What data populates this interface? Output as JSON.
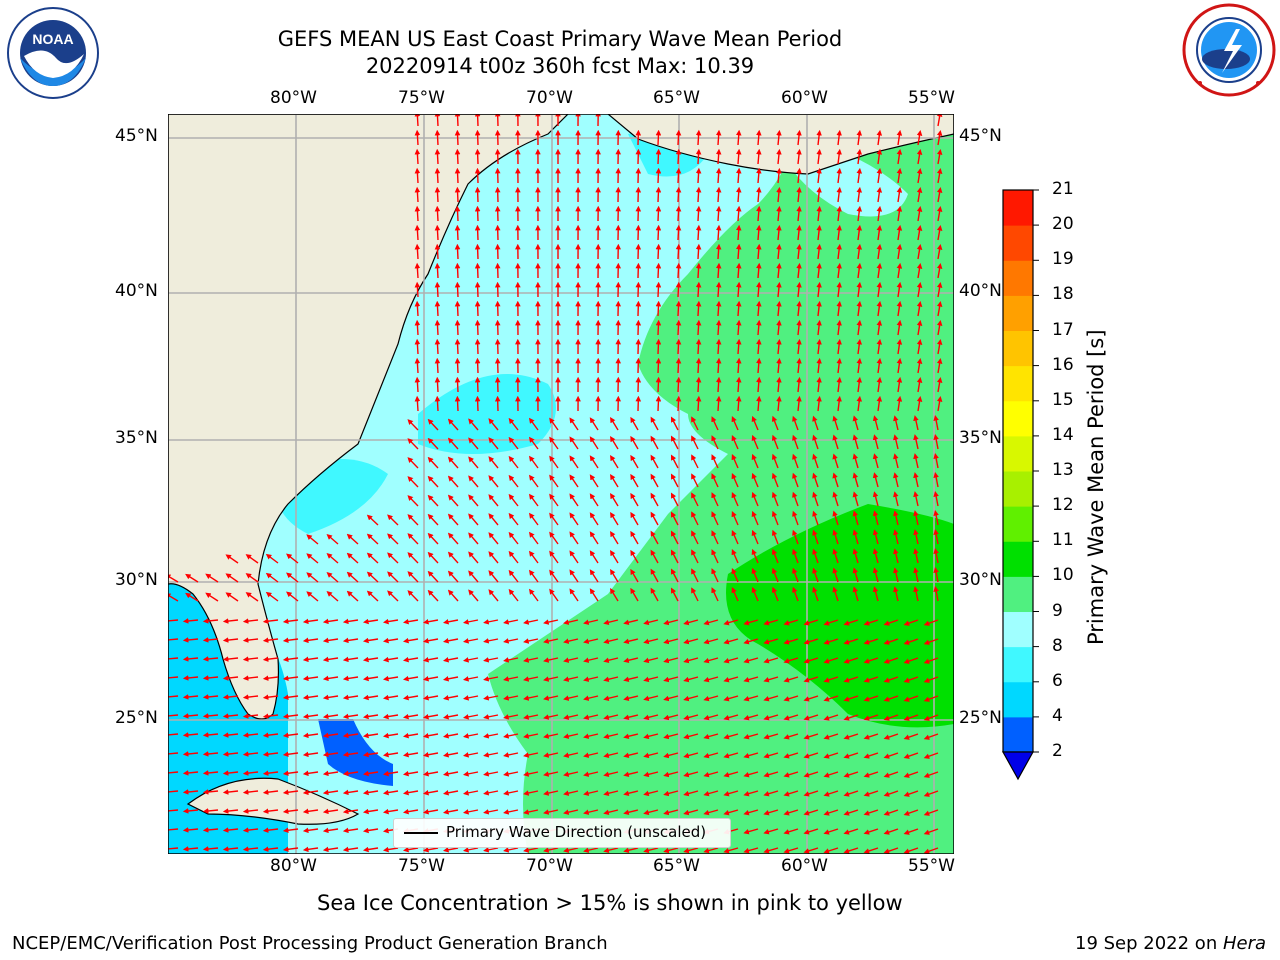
{
  "header": {
    "title_line1": "GEFS MEAN US East Coast Primary Wave Mean Period",
    "title_line2": "20220914 t00z 360h fcst   Max: 10.39"
  },
  "logos": {
    "left": {
      "name": "NOAA",
      "text": "NOAA"
    },
    "right": {
      "name": "National Weather Service"
    }
  },
  "map": {
    "lon_labels": [
      "80°W",
      "75°W",
      "70°W",
      "65°W",
      "60°W",
      "55°W"
    ],
    "lat_labels": [
      "45°N",
      "40°N",
      "35°N",
      "30°N",
      "25°N"
    ],
    "extent": {
      "lon": [
        -85,
        -54.5
      ],
      "lat": [
        20.5,
        46
      ]
    },
    "legend": "Primary Wave Direction (unscaled)",
    "land_color": "#efeddc",
    "arrow_color": "#ff0000"
  },
  "colorbar": {
    "label": "Primary Wave Mean Period [s]",
    "ticks": [
      "2",
      "4",
      "6",
      "8",
      "9",
      "10",
      "11",
      "12",
      "13",
      "14",
      "15",
      "16",
      "17",
      "18",
      "19",
      "20",
      "21"
    ],
    "colors": [
      "#0060ff",
      "#00d8ff",
      "#40f8ff",
      "#a0ffff",
      "#50f080",
      "#00e000",
      "#60f000",
      "#a8f000",
      "#d8f800",
      "#ffff00",
      "#ffe400",
      "#ffc400",
      "#ffa000",
      "#ff7800",
      "#ff4800",
      "#ff1800"
    ],
    "under_color": "#0000e8"
  },
  "chart_data": {
    "type": "heatmap",
    "title": "GEFS MEAN US East Coast Primary Wave Mean Period",
    "subtitle": "20220914 t00z 360h fcst   Max: 10.39",
    "max_value": 10.39,
    "colorbar_label": "Primary Wave Mean Period [s]",
    "colorbar_range": [
      2,
      21
    ],
    "x_ticks": [
      "80°W",
      "75°W",
      "70°W",
      "65°W",
      "60°W",
      "55°W"
    ],
    "y_ticks": [
      "45°N",
      "40°N",
      "35°N",
      "30°N",
      "25°N"
    ]
  },
  "footer": {
    "note": "Sea Ice Concentration > 15% is shown in pink to yellow",
    "left": "NCEP/EMC/Verification Post Processing Product Generation Branch",
    "right_date": "19 Sep 2022 on ",
    "right_host": "Hera"
  }
}
